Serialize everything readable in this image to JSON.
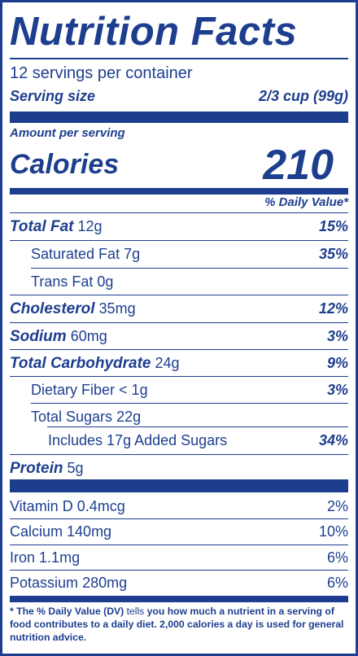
{
  "title": "Nutrition Facts",
  "servings_per_container": "12 servings per container",
  "serving_size": {
    "label": "Serving size",
    "value": "2/3 cup (99g)"
  },
  "amount_per_serving": "Amount per serving",
  "calories": {
    "label": "Calories",
    "value": "210"
  },
  "daily_value_header": "% Daily Value*",
  "nutrients": [
    {
      "name": "Total Fat",
      "amount": "12g",
      "dv": "15%"
    },
    {
      "name": "Saturated Fat",
      "amount": "7g",
      "dv": "35%"
    },
    {
      "name": "Trans Fat",
      "amount": "0g",
      "dv": ""
    },
    {
      "name": "Cholesterol",
      "amount": "35mg",
      "dv": "12%"
    },
    {
      "name": "Sodium",
      "amount": "60mg",
      "dv": "3%"
    },
    {
      "name": "Total Carbohydrate",
      "amount": "24g",
      "dv": "9%"
    },
    {
      "name": "Dietary Fiber",
      "amount": "< 1g",
      "dv": "3%"
    },
    {
      "name": "Total Sugars",
      "amount": "22g",
      "dv": ""
    },
    {
      "name": "Includes 17g Added Sugars",
      "amount": "",
      "dv": "34%"
    },
    {
      "name": "Protein",
      "amount": "5g",
      "dv": ""
    }
  ],
  "vitamins": [
    {
      "name": "Vitamin D",
      "amount": "0.4mcg",
      "dv": "2%"
    },
    {
      "name": "Calcium",
      "amount": "140mg",
      "dv": "10%"
    },
    {
      "name": "Iron",
      "amount": "1.1mg",
      "dv": "6%"
    },
    {
      "name": "Potassium",
      "amount": "280mg",
      "dv": "6%"
    }
  ],
  "footnote": {
    "part1": "* The % Daily Value (DV)",
    "part2": " tells ",
    "part3": "you how much a nutrient in a serving of food contributes to a daily diet. 2,000 calories a day is used for general nutrition advice."
  },
  "colors": {
    "ink": "#1d3e8f",
    "background": "#ffffff"
  }
}
